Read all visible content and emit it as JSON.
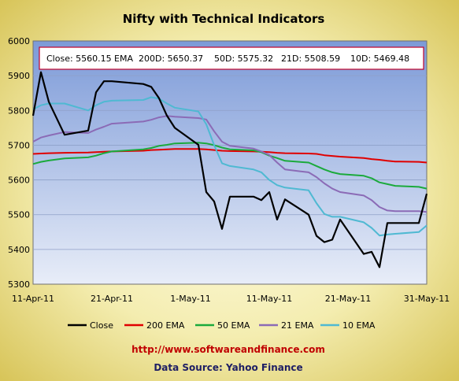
{
  "chart_data": {
    "type": "line",
    "title": "Nifty with Technical Indicators",
    "info_box": {
      "close": "Close: 5560.15",
      "ema_label": "EMA",
      "d200": "200D: 5650.37",
      "d50": "50D: 5575.32",
      "d21": "21D: 5508.59",
      "d10": "10D: 5469.48"
    },
    "x_ticks": [
      "11-Apr-11",
      "21-Apr-11",
      "1-May-11",
      "11-May-11",
      "21-May-11",
      "31-May-11"
    ],
    "ylim": [
      5300,
      6000
    ],
    "y_ticks": [
      "5300",
      "5400",
      "5500",
      "5600",
      "5700",
      "5800",
      "5900",
      "6000"
    ],
    "x": [
      "2011-04-11",
      "2011-04-12",
      "2011-04-13",
      "2011-04-15",
      "2011-04-18",
      "2011-04-19",
      "2011-04-20",
      "2011-04-21",
      "2011-04-25",
      "2011-04-26",
      "2011-04-27",
      "2011-04-28",
      "2011-04-29",
      "2011-05-02",
      "2011-05-03",
      "2011-05-04",
      "2011-05-05",
      "2011-05-06",
      "2011-05-09",
      "2011-05-10",
      "2011-05-11",
      "2011-05-12",
      "2011-05-13",
      "2011-05-16",
      "2011-05-17",
      "2011-05-18",
      "2011-05-19",
      "2011-05-20",
      "2011-05-23",
      "2011-05-24",
      "2011-05-25",
      "2011-05-26",
      "2011-05-27",
      "2011-05-30",
      "2011-05-31"
    ],
    "series": [
      {
        "name": "Close",
        "color": "#000000",
        "values": [
          5785,
          5910,
          5825,
          5730,
          5742,
          5852,
          5884,
          5884,
          5876,
          5868,
          5835,
          5785,
          5750,
          5701,
          5565,
          5538,
          5459,
          5552,
          5552,
          5542,
          5565,
          5486,
          5544,
          5500,
          5439,
          5421,
          5428,
          5486,
          5387,
          5393,
          5349,
          5476,
          5476,
          5476,
          5560
        ]
      },
      {
        "name": "200 EMA",
        "color": "#E00000",
        "values": [
          5675,
          5676,
          5677,
          5678,
          5679,
          5680,
          5681,
          5682,
          5684,
          5686,
          5687,
          5688,
          5689,
          5689,
          5688,
          5686,
          5684,
          5683,
          5682,
          5681,
          5680,
          5678,
          5677,
          5676,
          5675,
          5671,
          5669,
          5667,
          5663,
          5660,
          5658,
          5655,
          5653,
          5652,
          5650
        ]
      },
      {
        "name": "50 EMA",
        "color": "#1BAA3C",
        "values": [
          5646,
          5652,
          5656,
          5662,
          5665,
          5670,
          5677,
          5682,
          5688,
          5692,
          5698,
          5701,
          5705,
          5707,
          5705,
          5700,
          5693,
          5688,
          5685,
          5680,
          5670,
          5663,
          5655,
          5650,
          5640,
          5630,
          5622,
          5617,
          5612,
          5605,
          5593,
          5588,
          5583,
          5580,
          5575
        ]
      },
      {
        "name": "21 EMA",
        "color": "#8B6BB6",
        "values": [
          5710,
          5722,
          5728,
          5738,
          5735,
          5745,
          5753,
          5762,
          5768,
          5773,
          5780,
          5784,
          5782,
          5778,
          5774,
          5740,
          5710,
          5698,
          5690,
          5682,
          5672,
          5650,
          5630,
          5622,
          5608,
          5590,
          5575,
          5565,
          5555,
          5542,
          5522,
          5512,
          5510,
          5510,
          5508
        ]
      },
      {
        "name": "10 EMA",
        "color": "#4FB9D2",
        "values": [
          5803,
          5815,
          5820,
          5820,
          5800,
          5815,
          5825,
          5828,
          5830,
          5838,
          5834,
          5820,
          5808,
          5797,
          5760,
          5700,
          5648,
          5640,
          5630,
          5622,
          5600,
          5585,
          5578,
          5570,
          5533,
          5502,
          5494,
          5494,
          5478,
          5462,
          5440,
          5443,
          5445,
          5450,
          5469
        ]
      }
    ],
    "legend_position": "bottom",
    "grid": true
  },
  "footer": {
    "url": "http://www.softwareandfinance.com",
    "source": "Data Source: Yahoo Finance"
  },
  "colors": {
    "plot_top": "#7C9AD8",
    "plot_bottom": "#E8EDF8",
    "frame": "#E9DC7A",
    "info_border": "#C0002A",
    "url": "#C00000",
    "source": "#1E1E64"
  }
}
